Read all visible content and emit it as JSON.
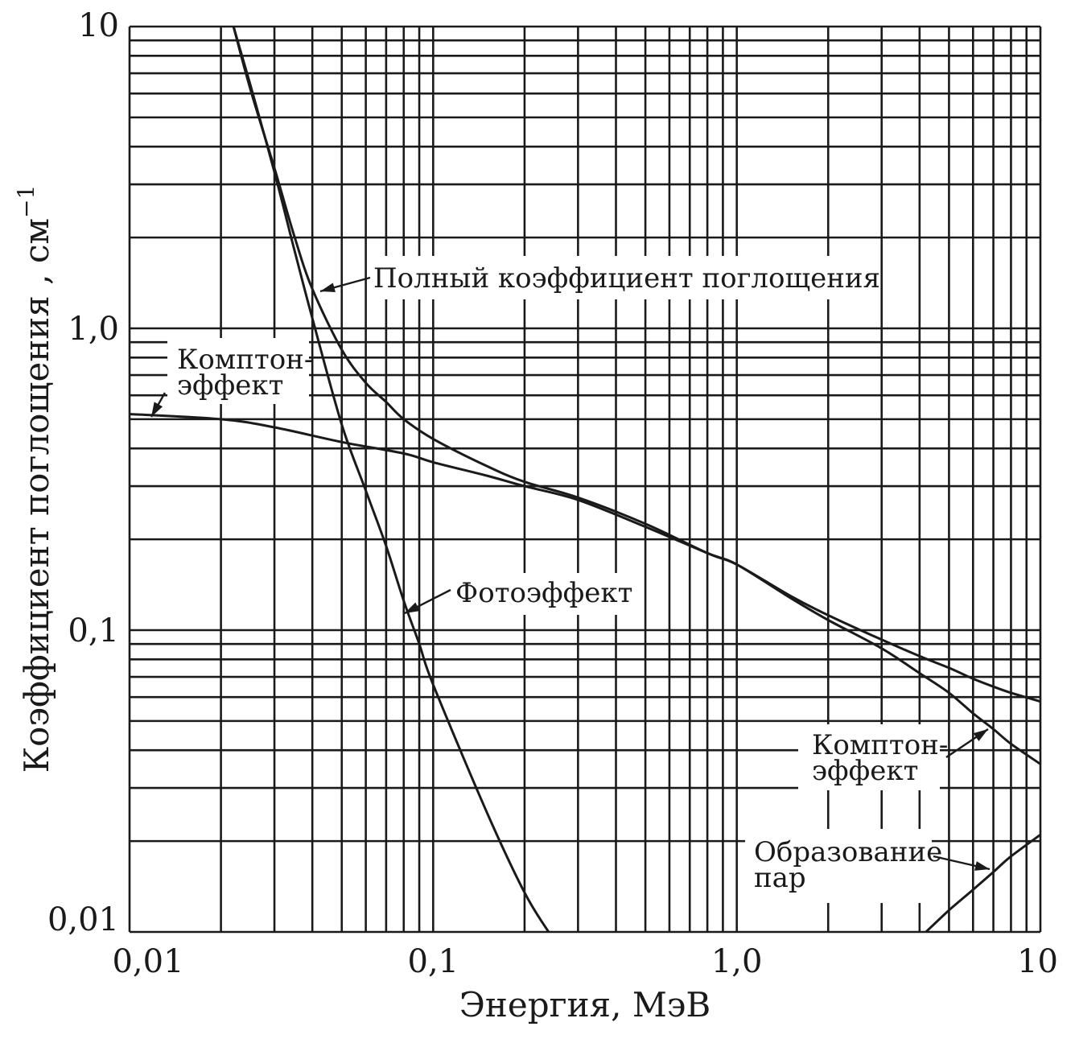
{
  "chart_data": {
    "type": "line",
    "xscale": "log",
    "yscale": "log",
    "xlim": [
      0.01,
      10
    ],
    "ylim": [
      0.01,
      10
    ],
    "xlabel": "Энергия, МэВ",
    "ylabel": "Коэффициент поглощения , см",
    "ylabel_exponent": "−1",
    "grid": true,
    "x_ticks": [
      {
        "value": 0.01,
        "label": "0,01"
      },
      {
        "value": 0.1,
        "label": "0,1"
      },
      {
        "value": 1,
        "label": "1,0"
      },
      {
        "value": 10,
        "label": "10"
      }
    ],
    "y_ticks": [
      {
        "value": 10,
        "label": "10"
      },
      {
        "value": 1,
        "label": "1,0"
      },
      {
        "value": 0.1,
        "label": "0,1"
      },
      {
        "value": 0.01,
        "label": "0,01"
      }
    ],
    "series": [
      {
        "name": "Полный коэффициент поглощения",
        "x": [
          0.022,
          0.025,
          0.03,
          0.035,
          0.04,
          0.05,
          0.06,
          0.07,
          0.08,
          0.1,
          0.15,
          0.2,
          0.3,
          0.5,
          0.8,
          1,
          1.5,
          2,
          3,
          4,
          5,
          6,
          7,
          8,
          10
        ],
        "y": [
          10,
          6.2,
          3.4,
          2.0,
          1.35,
          0.85,
          0.66,
          0.57,
          0.5,
          0.43,
          0.35,
          0.31,
          0.275,
          0.225,
          0.18,
          0.165,
          0.13,
          0.112,
          0.093,
          0.082,
          0.075,
          0.069,
          0.065,
          0.062,
          0.058
        ]
      },
      {
        "name": "Фотоэффект",
        "x": [
          0.022,
          0.025,
          0.03,
          0.035,
          0.04,
          0.05,
          0.06,
          0.07,
          0.08,
          0.09,
          0.1,
          0.15,
          0.2,
          0.24
        ],
        "y": [
          10,
          6.4,
          3.3,
          1.8,
          1.08,
          0.48,
          0.29,
          0.19,
          0.125,
          0.09,
          0.066,
          0.025,
          0.0135,
          0.01
        ]
      },
      {
        "name": "Комптон-эффект",
        "x": [
          0.01,
          0.02,
          0.03,
          0.05,
          0.08,
          0.1,
          0.15,
          0.2,
          0.3,
          0.5,
          0.8,
          1,
          1.5,
          2,
          3,
          4,
          5,
          6,
          7,
          8,
          10
        ],
        "y": [
          0.52,
          0.5,
          0.47,
          0.42,
          0.385,
          0.36,
          0.325,
          0.3,
          0.27,
          0.22,
          0.18,
          0.165,
          0.128,
          0.108,
          0.087,
          0.072,
          0.062,
          0.053,
          0.047,
          0.042,
          0.036
        ]
      },
      {
        "name": "Образование пар",
        "x": [
          4.2,
          5,
          6,
          7,
          8,
          10
        ],
        "y": [
          0.01,
          0.0118,
          0.0138,
          0.0158,
          0.0178,
          0.021
        ]
      }
    ],
    "annotations": [
      {
        "lines": [
          "Полный коэффициент поглощения"
        ]
      },
      {
        "lines": [
          "Комптон-",
          "эффект"
        ]
      },
      {
        "lines": [
          "Фотоэффект"
        ]
      },
      {
        "lines": [
          "Комптон-",
          "эффект"
        ]
      },
      {
        "lines": [
          "Образование",
          "пар"
        ]
      }
    ]
  }
}
